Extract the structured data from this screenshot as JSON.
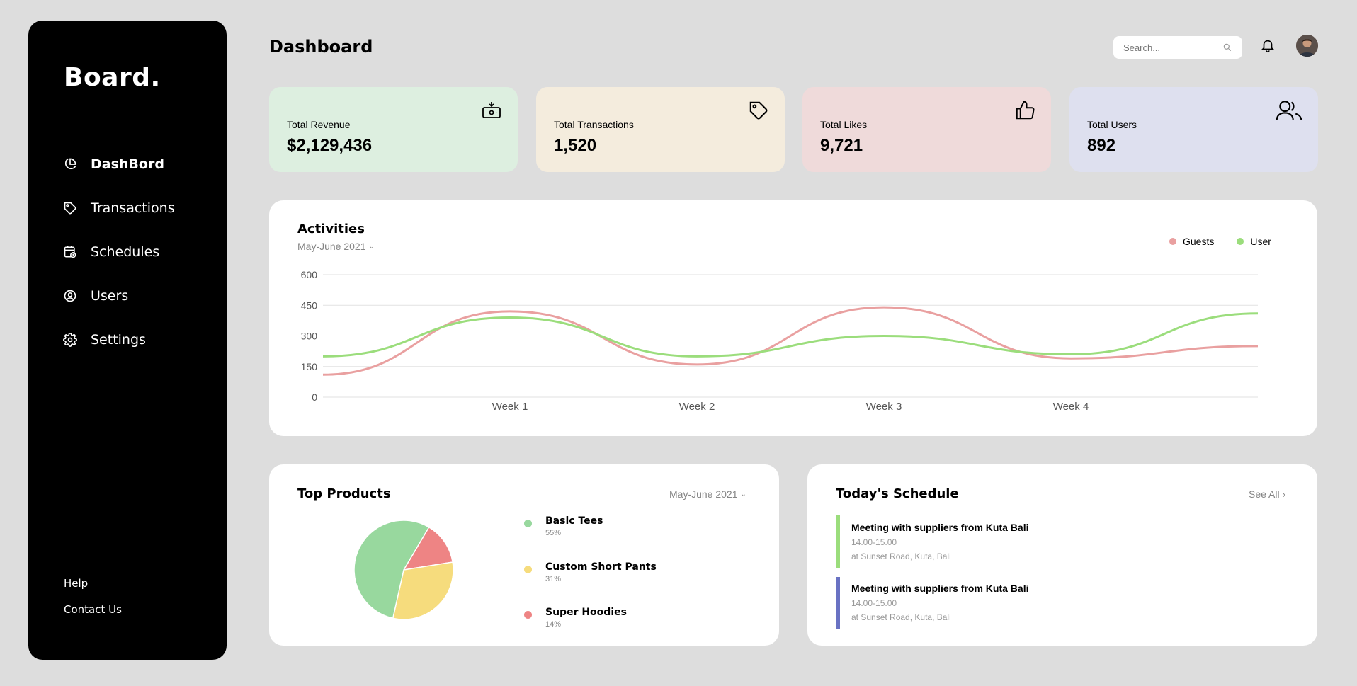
{
  "sidebar": {
    "brand": "Board.",
    "items": [
      {
        "label": "DashBord",
        "icon": "pie-chart-icon",
        "active": true
      },
      {
        "label": "Transactions",
        "icon": "tag-icon",
        "active": false
      },
      {
        "label": "Schedules",
        "icon": "calendar-clock-icon",
        "active": false
      },
      {
        "label": "Users",
        "icon": "user-circle-icon",
        "active": false
      },
      {
        "label": "Settings",
        "icon": "gear-icon",
        "active": false
      }
    ],
    "footer": [
      "Help",
      "Contact Us"
    ]
  },
  "header": {
    "title": "Dashboard",
    "search_placeholder": "Search..."
  },
  "stats": [
    {
      "label": "Total Revenue",
      "value": "$2,129,436",
      "icon": "money-icon",
      "color": "#ddefe0"
    },
    {
      "label": "Total Transactions",
      "value": "1,520",
      "icon": "tag-icon",
      "color": "#f4ecdd"
    },
    {
      "label": "Total Likes",
      "value": "9,721",
      "icon": "thumbs-up-icon",
      "color": "#efdada"
    },
    {
      "label": "Total Users",
      "value": "892",
      "icon": "users-icon",
      "color": "#dee0ef"
    }
  ],
  "activities": {
    "title": "Activities",
    "range": "May-June 2021",
    "legend": [
      {
        "name": "Guests",
        "color": "#e9a0a0"
      },
      {
        "name": "User",
        "color": "#9bdd7c"
      }
    ]
  },
  "chart_data": {
    "type": "line",
    "title": "Activities",
    "x": [
      0,
      1,
      2,
      3,
      4,
      5
    ],
    "categories": [
      "",
      "Week 1",
      "Week 2",
      "Week 3",
      "Week 4",
      ""
    ],
    "series": [
      {
        "name": "Guests",
        "values": [
          110,
          420,
          160,
          440,
          190,
          250
        ]
      },
      {
        "name": "User",
        "values": [
          200,
          390,
          200,
          300,
          210,
          410
        ]
      }
    ],
    "yticks": [
      0,
      150,
      300,
      450,
      600
    ],
    "ylim": [
      0,
      600
    ],
    "grid": true,
    "legend": "top-right"
  },
  "products": {
    "title": "Top Products",
    "range": "May-June 2021",
    "items": [
      {
        "name": "Basic Tees",
        "pct": "55%",
        "share": 55,
        "color": "#98d89e"
      },
      {
        "name": "Custom Short Pants",
        "pct": "31%",
        "share": 31,
        "color": "#f6dc7d"
      },
      {
        "name": "Super Hoodies",
        "pct": "14%",
        "share": 14,
        "color": "#ee8484"
      }
    ]
  },
  "schedule": {
    "title": "Today's Schedule",
    "see_all": "See All",
    "items": [
      {
        "title": "Meeting with suppliers from Kuta Bali",
        "time": "14.00-15.00",
        "place": "at Sunset Road, Kuta, Bali",
        "color": "#9bdd7c"
      },
      {
        "title": "Meeting with suppliers from Kuta Bali",
        "time": "14.00-15.00",
        "place": "at Sunset Road, Kuta, Bali",
        "color": "#6972c3"
      }
    ]
  }
}
